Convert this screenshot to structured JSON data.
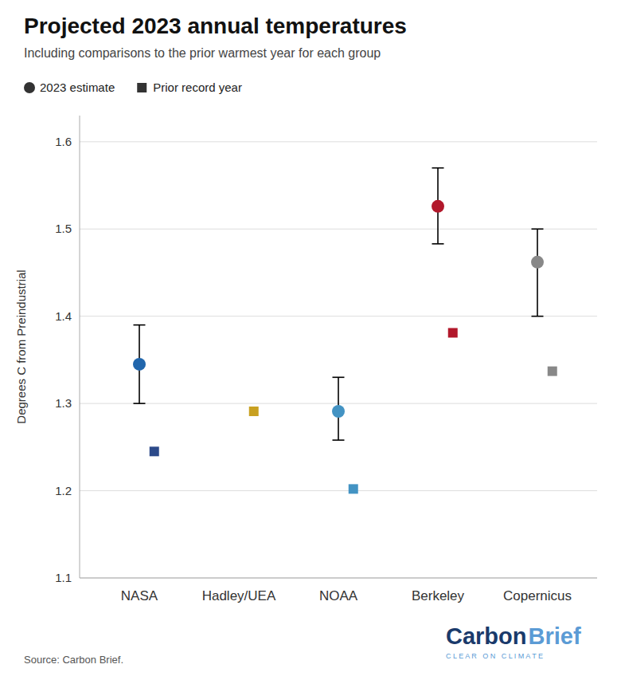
{
  "chart_data": {
    "type": "dot",
    "title": "Projected 2023 annual temperatures",
    "subtitle": "Including comparisons to the prior warmest year for each group",
    "y_label": "Degrees C from Preindustrial",
    "source": "Source: Carbon Brief.",
    "categories": [
      "NASA",
      "Hadley/UEA",
      "NOAA",
      "Berkeley",
      "Copernicus"
    ],
    "series": [
      {
        "name": "2023 estimate",
        "marker": "circle",
        "color": "#333333",
        "values": [
          1.345,
          null,
          1.291,
          1.526,
          1.462
        ],
        "error_low": [
          1.3,
          null,
          1.258,
          1.483,
          1.4
        ],
        "error_high": [
          1.39,
          null,
          1.33,
          1.57,
          1.5
        ],
        "colors": [
          "#2166ac",
          null,
          "#4393c3",
          "#b2182b",
          "#888888"
        ]
      },
      {
        "name": "Prior record year",
        "marker": "square",
        "color": "#333333",
        "values": [
          1.245,
          1.291,
          1.202,
          1.381,
          1.337
        ],
        "colors": [
          "#2c4a8a",
          "#c8a020",
          "#4393c3",
          "#b2182b",
          "#888888"
        ]
      }
    ],
    "ylim": [
      1.1,
      1.63
    ],
    "yticks": [
      1.1,
      1.2,
      1.3,
      1.4,
      1.5,
      1.6
    ],
    "grid": true,
    "legend": "top",
    "annotations": [
      {
        "text": "Carbon",
        "color": "#1a3a6b"
      },
      {
        "text": "Brief",
        "color": "#5b9bd5"
      },
      {
        "text": "C L E A R   O N   C L I M A T E",
        "color": "#5b9bd5"
      }
    ]
  }
}
